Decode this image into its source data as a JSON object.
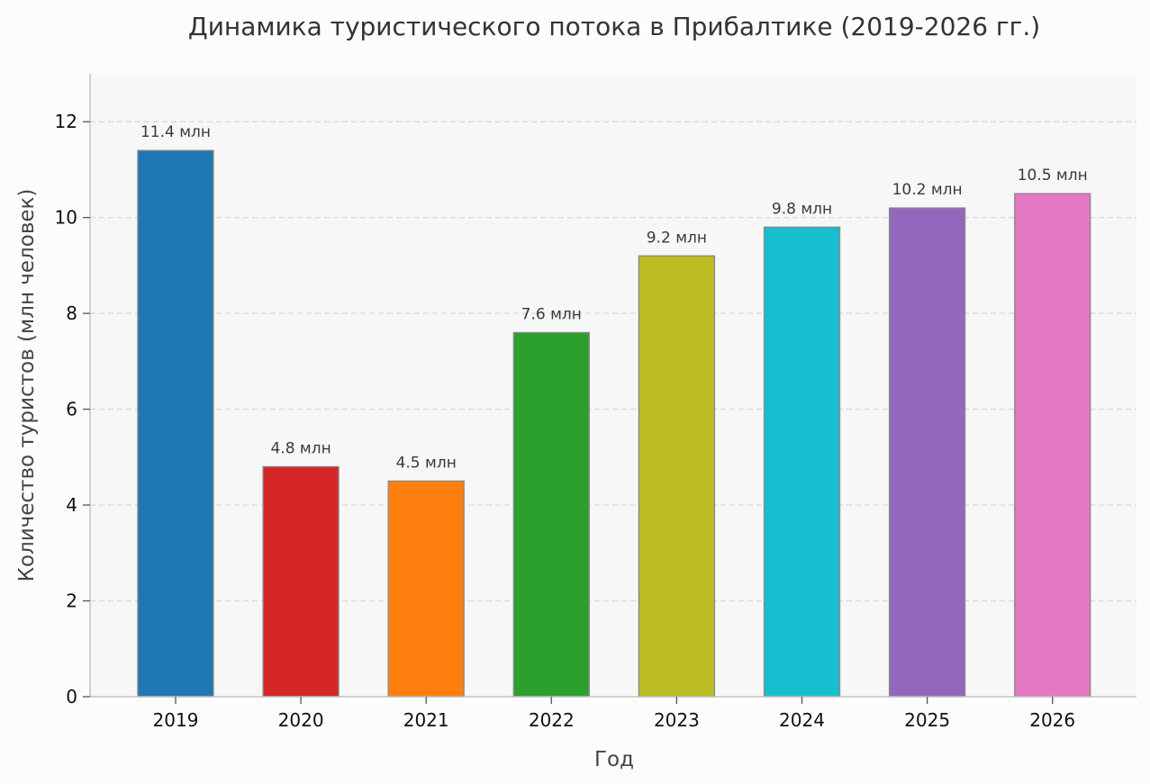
{
  "chart_data": {
    "type": "bar",
    "title": "Динамика туристического потока в Прибалтике (2019-2026 гг.)",
    "xlabel": "Год",
    "ylabel": "Количество туристов (млн человек)",
    "categories": [
      "2019",
      "2020",
      "2021",
      "2022",
      "2023",
      "2024",
      "2025",
      "2026"
    ],
    "values": [
      11.4,
      4.8,
      4.5,
      7.6,
      9.2,
      9.8,
      10.2,
      10.5
    ],
    "data_labels": [
      "11.4 млн",
      "4.8 млн",
      "4.5 млн",
      "7.6 млн",
      "9.2 млн",
      "9.8 млн",
      "10.2 млн",
      "10.5 млн"
    ],
    "colors": [
      "#1f77b4",
      "#d62728",
      "#ff7f0e",
      "#2ca02c",
      "#bcbd22",
      "#17becf",
      "#9467bd",
      "#e377c2"
    ],
    "ylim": [
      0,
      13
    ],
    "yticks": [
      0,
      2,
      4,
      6,
      8,
      10,
      12
    ],
    "grid": "horizontal dashed",
    "legend": "none"
  }
}
